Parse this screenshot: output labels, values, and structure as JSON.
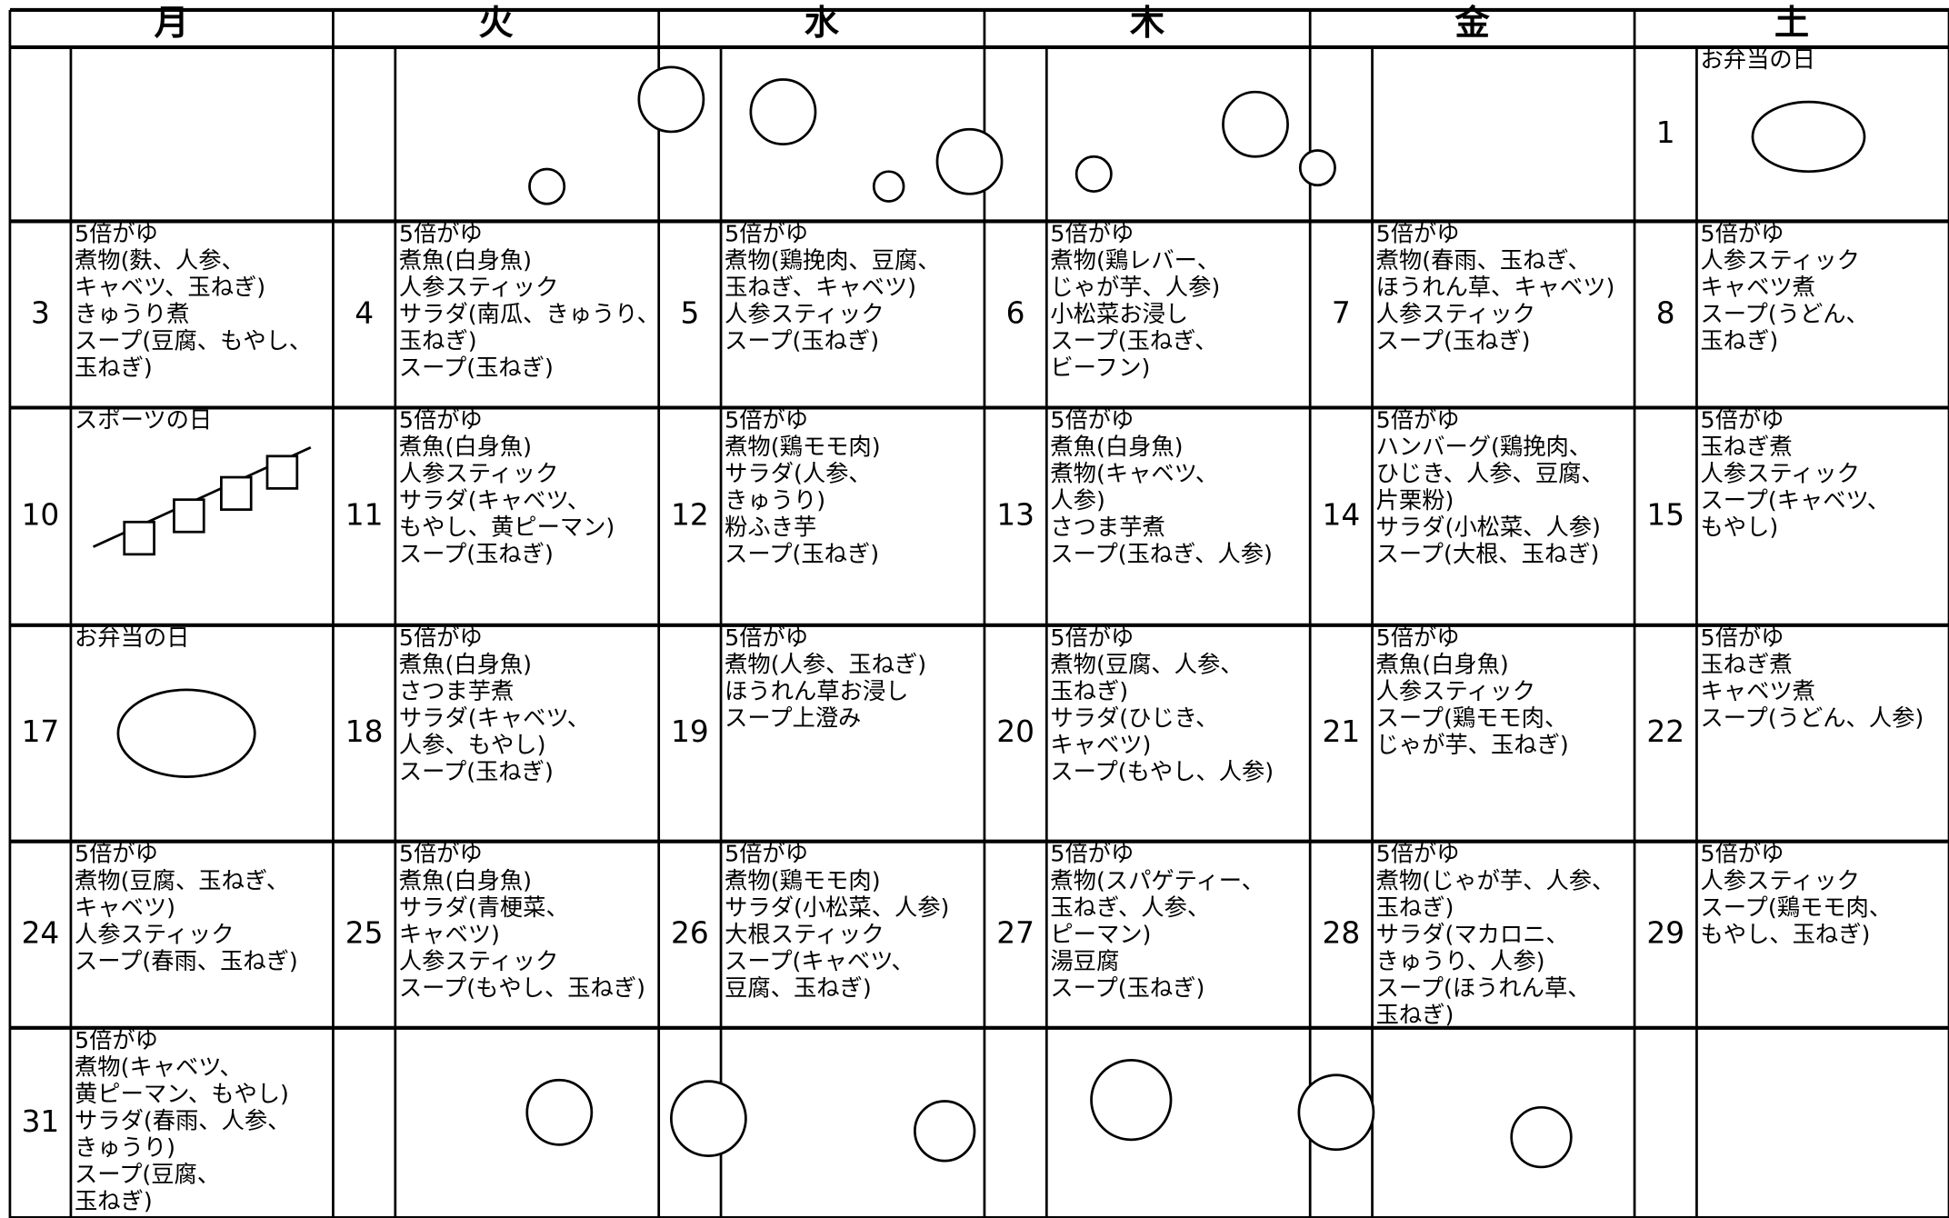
{
  "header": {
    "days": [
      "月",
      "火",
      "水",
      "木",
      "金",
      "土"
    ]
  },
  "weeks": [
    {
      "cells": [
        {},
        {},
        {},
        {},
        {},
        {
          "date": 1,
          "note": "お弁当の日"
        }
      ]
    },
    {
      "cells": [
        {
          "date": 3,
          "lines": [
            "5倍がゆ",
            "煮物(麩、人参、",
            "キャベツ、玉ねぎ)",
            "きゅうり煮",
            "スープ(豆腐、もやし、",
            "玉ねぎ)"
          ]
        },
        {
          "date": 4,
          "lines": [
            "5倍がゆ",
            "煮魚(白身魚)",
            "人参スティック",
            "サラダ(南瓜、きゅうり、",
            "玉ねぎ)",
            "スープ(玉ねぎ)"
          ]
        },
        {
          "date": 5,
          "lines": [
            "5倍がゆ",
            "煮物(鶏挽肉、豆腐、",
            "玉ねぎ、キャベツ)",
            "人参スティック",
            "スープ(玉ねぎ)"
          ]
        },
        {
          "date": 6,
          "lines": [
            "5倍がゆ",
            "煮物(鶏レバー、",
            "じゃが芋、人参)",
            "小松菜お浸し",
            "スープ(玉ねぎ、",
            "ビーフン)"
          ]
        },
        {
          "date": 7,
          "lines": [
            "5倍がゆ",
            "煮物(春雨、玉ねぎ、",
            "ほうれん草、キャベツ)",
            "人参スティック",
            "スープ(玉ねぎ)"
          ]
        },
        {
          "date": 8,
          "lines": [
            "5倍がゆ",
            "人参スティック",
            "キャベツ煮",
            "スープ(うどん、",
            "玉ねぎ)"
          ]
        }
      ]
    },
    {
      "cells": [
        {
          "date": 10,
          "note": "スポーツの日"
        },
        {
          "date": 11,
          "lines": [
            "5倍がゆ",
            "煮魚(白身魚)",
            "人参スティック",
            "サラダ(キャベツ、",
            "もやし、黄ピーマン)",
            "スープ(玉ねぎ)"
          ]
        },
        {
          "date": 12,
          "lines": [
            "5倍がゆ",
            "煮物(鶏モモ肉)",
            "サラダ(人参、",
            "きゅうり)",
            "粉ふき芋",
            "スープ(玉ねぎ)"
          ]
        },
        {
          "date": 13,
          "lines": [
            "5倍がゆ",
            "煮魚(白身魚)",
            "煮物(キャベツ、",
            "人参)",
            "さつま芋煮",
            "スープ(玉ねぎ、人参)"
          ]
        },
        {
          "date": 14,
          "lines": [
            "5倍がゆ",
            "ハンバーグ(鶏挽肉、",
            "ひじき、人参、豆腐、",
            "片栗粉)",
            "サラダ(小松菜、人参)",
            "スープ(大根、玉ねぎ)"
          ]
        },
        {
          "date": 15,
          "lines": [
            "5倍がゆ",
            "玉ねぎ煮",
            "人参スティック",
            "スープ(キャベツ、",
            "もやし)"
          ]
        }
      ]
    },
    {
      "cells": [
        {
          "date": 17,
          "note": "お弁当の日"
        },
        {
          "date": 18,
          "lines": [
            "5倍がゆ",
            "煮魚(白身魚)",
            "さつま芋煮",
            "サラダ(キャベツ、",
            "人参、もやし)",
            "スープ(玉ねぎ)"
          ]
        },
        {
          "date": 19,
          "lines": [
            "5倍がゆ",
            "煮物(人参、玉ねぎ)",
            "ほうれん草お浸し",
            "スープ上澄み"
          ]
        },
        {
          "date": 20,
          "lines": [
            "5倍がゆ",
            "煮物(豆腐、人参、",
            "玉ねぎ)",
            "サラダ(ひじき、",
            "キャベツ)",
            "スープ(もやし、人参)"
          ]
        },
        {
          "date": 21,
          "lines": [
            "5倍がゆ",
            "煮魚(白身魚)",
            "人参スティック",
            "スープ(鶏モモ肉、",
            "じゃが芋、玉ねぎ)"
          ]
        },
        {
          "date": 22,
          "lines": [
            "5倍がゆ",
            "玉ねぎ煮",
            "キャベツ煮",
            "スープ(うどん、人参)"
          ]
        }
      ]
    },
    {
      "cells": [
        {
          "date": 24,
          "lines": [
            "5倍がゆ",
            "煮物(豆腐、玉ねぎ、",
            "キャベツ)",
            "人参スティック",
            "スープ(春雨、玉ねぎ)"
          ]
        },
        {
          "date": 25,
          "lines": [
            "5倍がゆ",
            "煮魚(白身魚)",
            "サラダ(青梗菜、",
            "キャベツ)",
            "人参スティック",
            "スープ(もやし、玉ねぎ)"
          ]
        },
        {
          "date": 26,
          "lines": [
            "5倍がゆ",
            "煮物(鶏モモ肉)",
            "サラダ(小松菜、人参)",
            "大根スティック",
            "スープ(キャベツ、",
            "豆腐、玉ねぎ)"
          ]
        },
        {
          "date": 27,
          "lines": [
            "5倍がゆ",
            "煮物(スパゲティー、",
            "玉ねぎ、人参、",
            "ピーマン)",
            "湯豆腐",
            "スープ(玉ねぎ)"
          ]
        },
        {
          "date": 28,
          "lines": [
            "5倍がゆ",
            "煮物(じゃが芋、人参、",
            "玉ねぎ)",
            "サラダ(マカロニ、",
            "きゅうり、人参)",
            "スープ(ほうれん草、",
            "玉ねぎ)"
          ]
        },
        {
          "date": 29,
          "lines": [
            "5倍がゆ",
            "人参スティック",
            "スープ(鶏モモ肉、",
            "もやし、玉ねぎ)"
          ]
        }
      ]
    },
    {
      "cells": [
        {
          "date": 31,
          "lines": [
            "5倍がゆ",
            "煮物(キャベツ、",
            "黄ピーマン、もやし)",
            "サラダ(春雨、人参、",
            "きゅうり)",
            "スープ(豆腐、",
            "玉ねぎ)"
          ]
        },
        {},
        {},
        {},
        {},
        {}
      ]
    }
  ]
}
